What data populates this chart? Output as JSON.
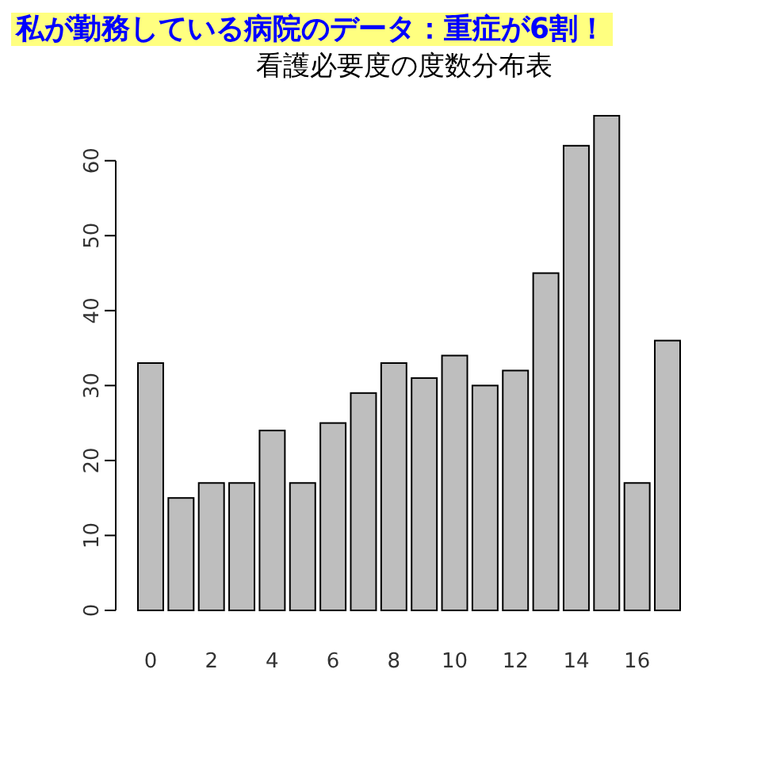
{
  "chart_data": {
    "type": "bar",
    "title": "私が勤務している病院のデータ：重症が6割！",
    "subtitle": "看護必要度の度数分布表",
    "categories": [
      "0",
      null,
      "2",
      null,
      "4",
      null,
      "6",
      null,
      "8",
      null,
      "10",
      null,
      "12",
      null,
      "14",
      null,
      "16",
      null
    ],
    "values": [
      33,
      15,
      17,
      17,
      24,
      17,
      25,
      29,
      33,
      31,
      34,
      30,
      32,
      45,
      62,
      66,
      17,
      36
    ],
    "color": "#bebebe",
    "ylim": [
      0,
      66
    ],
    "yticks": [
      0,
      10,
      20,
      30,
      40,
      50,
      60
    ],
    "grid": false
  }
}
